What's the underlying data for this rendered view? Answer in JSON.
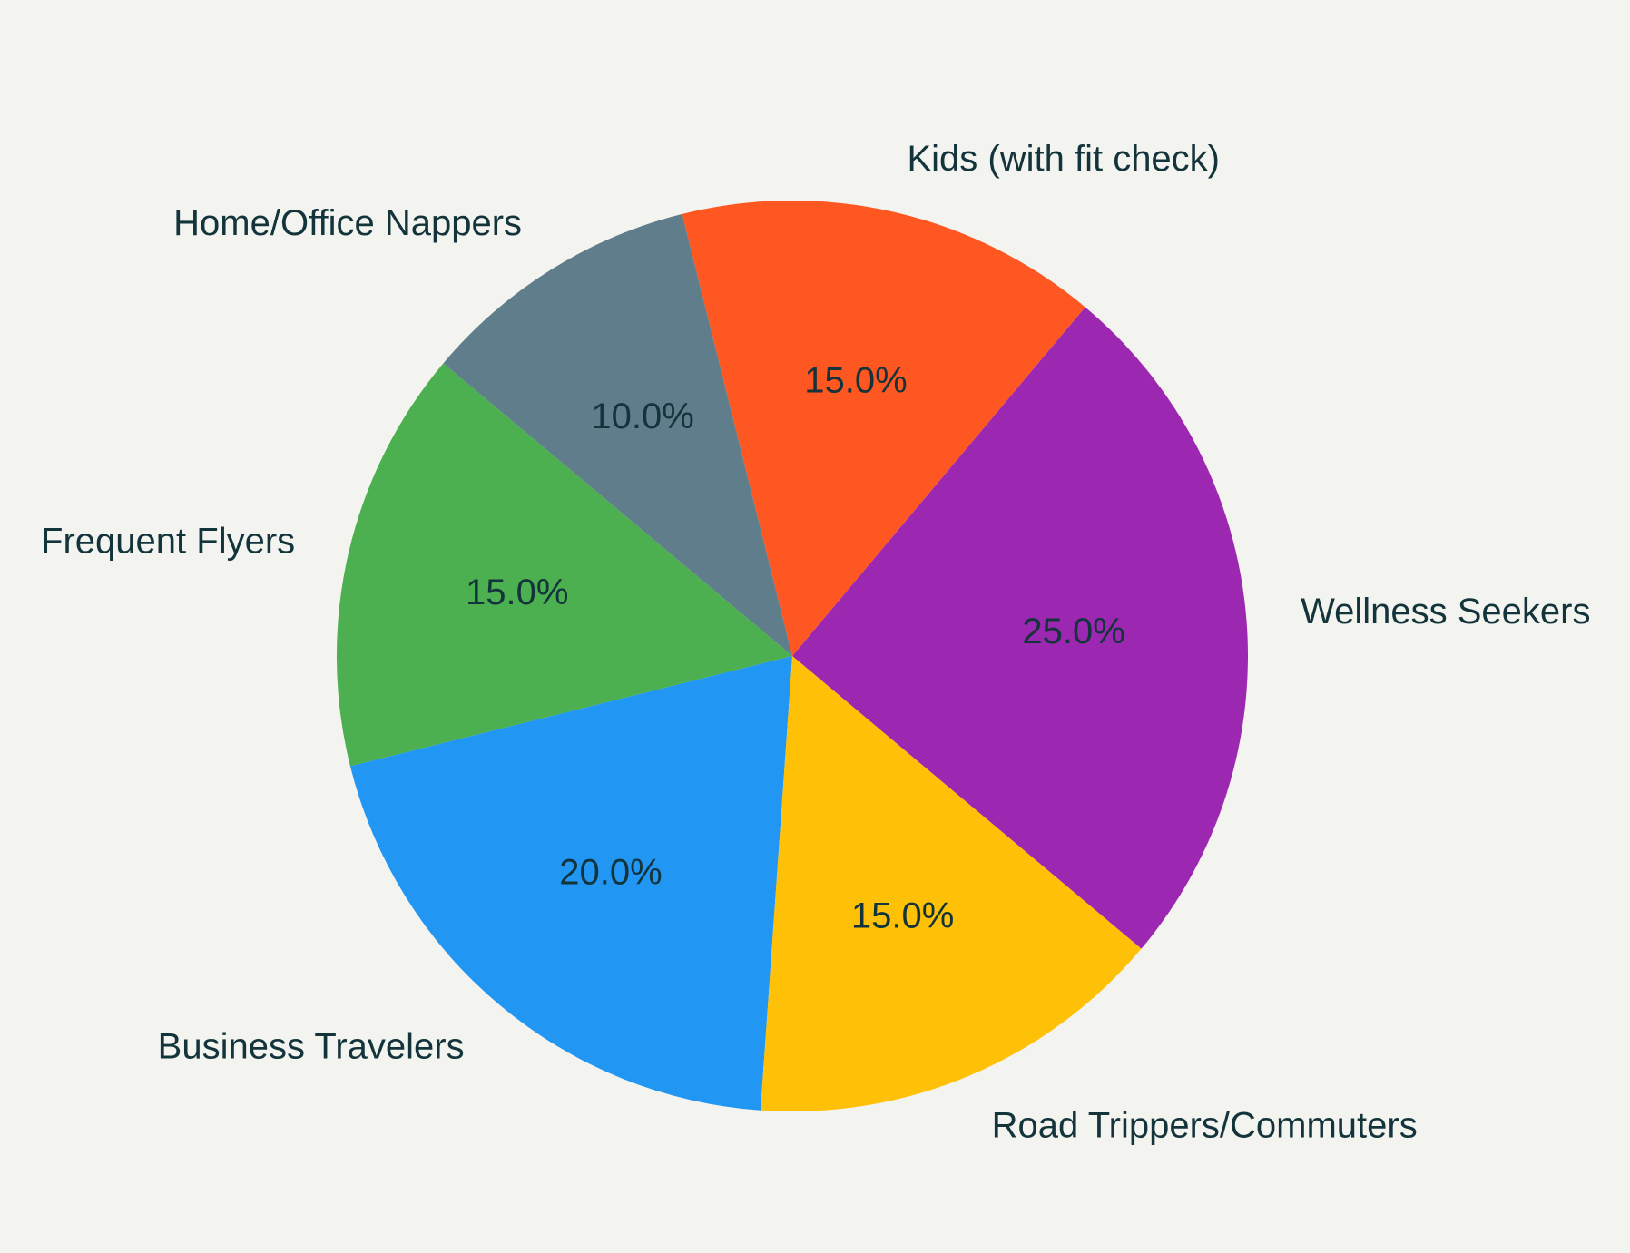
{
  "chart_data": {
    "type": "pie",
    "categories": [
      "Wellness Seekers",
      "Kids (with fit check)",
      "Home/Office Nappers",
      "Frequent Flyers",
      "Business Travelers",
      "Road Trippers/Commuters"
    ],
    "values": [
      25.0,
      15.0,
      10.0,
      15.0,
      20.0,
      15.0
    ],
    "value_labels": [
      "25.0%",
      "15.0%",
      "10.0%",
      "15.0%",
      "20.0%",
      "15.0%"
    ],
    "colors": [
      "#9c27b0",
      "#ff5722",
      "#607d8b",
      "#4caf50",
      "#2196f3",
      "#ffc107"
    ],
    "start_angle_deg": -40,
    "direction": "counterclockwise",
    "legend": "none",
    "title": ""
  }
}
